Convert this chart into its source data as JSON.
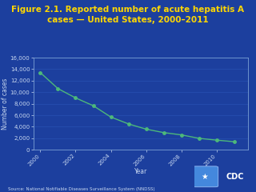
{
  "title_line1": "Figure 2.1. Reported number of acute hepatitis A",
  "title_line2": "cases — United States, 2000–2011",
  "xlabel": "Year",
  "ylabel": "Number of cases",
  "source": "Source: National Notifiable Diseases Surveillance System (NNDSS)",
  "years": [
    2000,
    2001,
    2002,
    2003,
    2004,
    2005,
    2006,
    2007,
    2008,
    2009,
    2010,
    2011
  ],
  "values": [
    13397,
    10616,
    9003,
    7653,
    5683,
    4488,
    3579,
    2979,
    2585,
    1987,
    1670,
    1398
  ],
  "ylim": [
    0,
    16000
  ],
  "yticks": [
    0,
    2000,
    4000,
    6000,
    8000,
    10000,
    12000,
    14000,
    16000
  ],
  "xticks": [
    2000,
    2002,
    2004,
    2006,
    2008,
    2010
  ],
  "background_color": "#1c3f9e",
  "plot_bg_color": "#1c3f9e",
  "line_color": "#4db87a",
  "marker_color": "#4db87a",
  "title_color": "#ffd700",
  "axis_color": "#7a9fd4",
  "tick_color": "#c8d8f0",
  "label_color": "#c8d8f0",
  "grid_color": "#2a56b8",
  "title_fontsize": 7.5,
  "axis_label_fontsize": 5.5,
  "tick_fontsize": 5.0,
  "source_fontsize": 4.0,
  "cdc_bg": "#1e5aaa",
  "cdc_text": "#ffffff"
}
